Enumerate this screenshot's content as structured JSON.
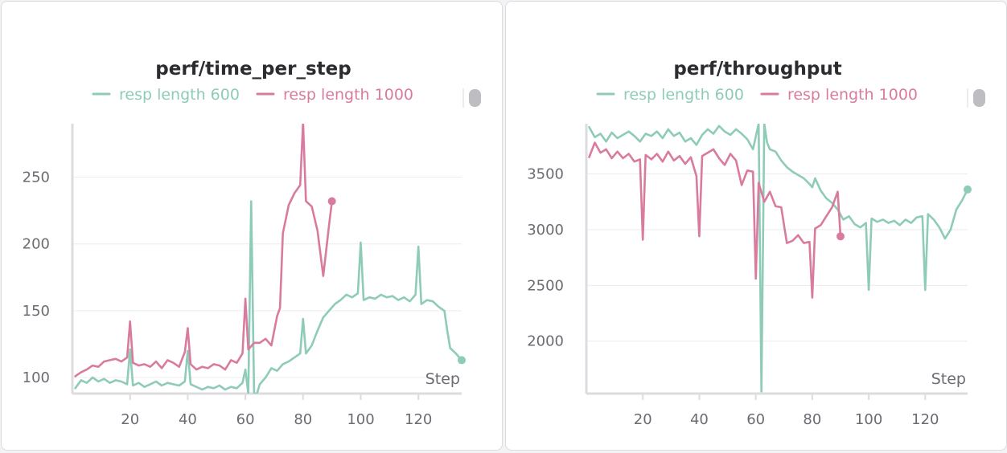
{
  "chart_data": [
    {
      "type": "line",
      "title": "perf/time_per_step",
      "xlabel": "Step",
      "ylabel": "",
      "xlim": [
        0,
        135
      ],
      "ylim": [
        88,
        290
      ],
      "xticks": [
        20,
        40,
        60,
        80,
        100,
        120
      ],
      "yticks": [
        100,
        150,
        200,
        250
      ],
      "legend_position": "top",
      "grid": true,
      "series": [
        {
          "name": "resp length 600",
          "color": "#8ecbb8",
          "x": [
            1,
            3,
            5,
            7,
            9,
            11,
            13,
            15,
            17,
            19,
            20,
            21,
            23,
            25,
            27,
            29,
            31,
            33,
            35,
            37,
            39,
            40,
            41,
            43,
            45,
            47,
            49,
            51,
            53,
            55,
            57,
            59,
            60,
            61,
            62,
            63,
            64,
            65,
            67,
            69,
            71,
            73,
            75,
            77,
            79,
            80,
            81,
            83,
            85,
            87,
            89,
            91,
            93,
            95,
            97,
            99,
            100,
            101,
            103,
            105,
            107,
            109,
            111,
            113,
            115,
            117,
            119,
            120,
            121,
            123,
            125,
            127,
            129,
            130,
            131,
            133,
            135
          ],
          "y": [
            92,
            98,
            96,
            100,
            97,
            99,
            96,
            98,
            97,
            95,
            121,
            94,
            96,
            93,
            95,
            97,
            94,
            96,
            95,
            94,
            97,
            120,
            95,
            93,
            91,
            93,
            92,
            94,
            91,
            93,
            92,
            96,
            106,
            88,
            232,
            88,
            88,
            95,
            100,
            107,
            105,
            110,
            112,
            115,
            118,
            144,
            118,
            124,
            135,
            145,
            150,
            155,
            158,
            162,
            160,
            163,
            201,
            158,
            160,
            159,
            162,
            160,
            161,
            158,
            160,
            157,
            162,
            198,
            155,
            158,
            157,
            153,
            150,
            135,
            122,
            118,
            113
          ]
        },
        {
          "name": "resp length 1000",
          "color": "#d97b9e",
          "x": [
            1,
            3,
            5,
            7,
            9,
            11,
            13,
            15,
            17,
            19,
            20,
            21,
            23,
            25,
            27,
            29,
            31,
            33,
            35,
            37,
            39,
            40,
            41,
            43,
            45,
            47,
            49,
            51,
            53,
            55,
            57,
            59,
            60,
            61,
            63,
            65,
            67,
            69,
            71,
            72,
            73,
            75,
            77,
            79,
            80,
            81,
            83,
            85,
            87,
            89,
            90
          ],
          "y": [
            101,
            104,
            106,
            109,
            108,
            112,
            113,
            114,
            112,
            115,
            142,
            111,
            109,
            110,
            108,
            112,
            107,
            113,
            111,
            108,
            119,
            137,
            110,
            106,
            108,
            107,
            110,
            109,
            106,
            113,
            111,
            118,
            159,
            121,
            126,
            126,
            129,
            124,
            146,
            152,
            208,
            229,
            238,
            244,
            291,
            232,
            228,
            210,
            176,
            214,
            232
          ]
        }
      ]
    },
    {
      "type": "line",
      "title": "perf/throughput",
      "xlabel": "Step",
      "ylabel": "",
      "xlim": [
        0,
        135
      ],
      "ylim": [
        1530,
        3950
      ],
      "xticks": [
        20,
        40,
        60,
        80,
        100,
        120
      ],
      "yticks": [
        2000,
        2500,
        3000,
        3500
      ],
      "legend_position": "top",
      "grid": true,
      "series": [
        {
          "name": "resp length 600",
          "color": "#8ecbb8",
          "x": [
            1,
            3,
            5,
            7,
            9,
            11,
            13,
            15,
            17,
            19,
            21,
            23,
            25,
            27,
            29,
            31,
            33,
            35,
            37,
            39,
            41,
            43,
            45,
            47,
            49,
            51,
            53,
            55,
            57,
            59,
            61,
            62,
            63,
            64,
            65,
            67,
            69,
            71,
            73,
            75,
            77,
            79,
            80,
            81,
            83,
            85,
            87,
            89,
            91,
            93,
            95,
            97,
            99,
            100,
            101,
            103,
            105,
            107,
            109,
            111,
            113,
            115,
            117,
            119,
            120,
            121,
            123,
            125,
            127,
            129,
            131,
            133,
            135
          ],
          "y": [
            3920,
            3830,
            3860,
            3790,
            3870,
            3820,
            3850,
            3880,
            3840,
            3790,
            3860,
            3840,
            3880,
            3820,
            3900,
            3840,
            3870,
            3790,
            3820,
            3760,
            3850,
            3900,
            3860,
            3930,
            3880,
            3850,
            3900,
            3860,
            3810,
            3720,
            3950,
            1550,
            3950,
            3780,
            3720,
            3700,
            3620,
            3560,
            3520,
            3490,
            3460,
            3410,
            3380,
            3460,
            3350,
            3280,
            3240,
            3180,
            3090,
            3120,
            3050,
            3020,
            3060,
            2460,
            3100,
            3070,
            3090,
            3060,
            3080,
            3040,
            3090,
            3060,
            3110,
            3120,
            2460,
            3140,
            3090,
            3020,
            2920,
            3000,
            3180,
            3260,
            3360
          ]
        },
        {
          "name": "resp length 1000",
          "color": "#d97b9e",
          "x": [
            1,
            3,
            5,
            7,
            9,
            11,
            13,
            15,
            17,
            19,
            20,
            21,
            23,
            25,
            27,
            29,
            31,
            33,
            35,
            37,
            39,
            40,
            41,
            43,
            45,
            47,
            49,
            51,
            53,
            55,
            57,
            59,
            60,
            61,
            63,
            65,
            67,
            69,
            71,
            73,
            75,
            77,
            79,
            80,
            81,
            83,
            85,
            87,
            89,
            90
          ],
          "y": [
            3650,
            3780,
            3690,
            3720,
            3640,
            3700,
            3640,
            3680,
            3610,
            3630,
            2910,
            3670,
            3630,
            3680,
            3610,
            3700,
            3620,
            3660,
            3590,
            3650,
            3480,
            2940,
            3660,
            3690,
            3720,
            3640,
            3580,
            3680,
            3620,
            3400,
            3530,
            3520,
            2560,
            3420,
            3250,
            3340,
            3210,
            3200,
            2880,
            2900,
            2950,
            2880,
            2890,
            2390,
            3010,
            3040,
            3120,
            3200,
            3340,
            2940
          ]
        }
      ]
    }
  ]
}
